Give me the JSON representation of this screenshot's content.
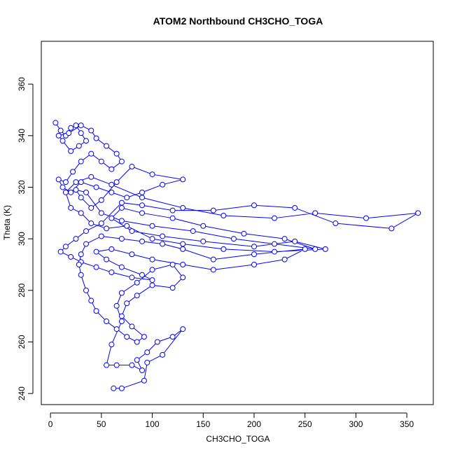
{
  "chart_data": {
    "type": "scatter",
    "title": "ATOM2 Northbound CH3CHO_TOGA",
    "x_label": "CH3CHO_TOGA",
    "y_label": "Theta (K)",
    "xlim": [
      -9,
      376
    ],
    "ylim": [
      235.7,
      376.6
    ],
    "xticks": [
      0,
      50,
      100,
      150,
      200,
      250,
      300,
      350
    ],
    "yticks": [
      240,
      260,
      280,
      300,
      320,
      340,
      360
    ],
    "series": [
      {
        "name": "CH3CHO_TOGA",
        "color": "#0000ff",
        "x": [
          5,
          10,
          15,
          20,
          25,
          30,
          35,
          28,
          20,
          12,
          8,
          18,
          30,
          40,
          45,
          55,
          65,
          70,
          60,
          50,
          40,
          30,
          22,
          15,
          8,
          12,
          20,
          30,
          45,
          60,
          75,
          90,
          110,
          130,
          100,
          80,
          65,
          50,
          40,
          30,
          25,
          35,
          50,
          70,
          100,
          140,
          180,
          220,
          260,
          230,
          190,
          150,
          120,
          90,
          70,
          60,
          80,
          110,
          150,
          200,
          240,
          270,
          220,
          170,
          130,
          100,
          75,
          55,
          40,
          30,
          20,
          15,
          25,
          40,
          60,
          90,
          130,
          170,
          220,
          260,
          310,
          361,
          335,
          280,
          240,
          200,
          160,
          120,
          90,
          70,
          50,
          35,
          25,
          15,
          10,
          20,
          30,
          45,
          60,
          80,
          100,
          90,
          70,
          55,
          45,
          60,
          80,
          100,
          130,
          160,
          200,
          230,
          250,
          200,
          160,
          130,
          110,
          90,
          70,
          50,
          35,
          30,
          28,
          30,
          35,
          40,
          45,
          55,
          65,
          75,
          85,
          92,
          80,
          70,
          75,
          85,
          100,
          120,
          130,
          120,
          100,
          85,
          70,
          65,
          70,
          60,
          55,
          65,
          80,
          90,
          85,
          95,
          105,
          120,
          130,
          110,
          95,
          92,
          70,
          62
        ],
        "values": [
          345,
          342,
          340,
          343,
          344,
          341,
          338,
          336,
          334,
          338,
          340,
          341,
          344,
          342,
          339,
          336,
          333,
          330,
          327,
          330,
          333,
          330,
          326,
          322,
          323,
          320,
          318,
          322,
          320,
          318,
          316,
          318,
          321,
          323,
          325,
          328,
          322,
          315,
          312,
          316,
          319,
          318,
          310,
          307,
          305,
          303,
          300,
          298,
          296,
          300,
          302,
          305,
          308,
          310,
          312,
          308,
          303,
          301,
          299,
          297,
          299,
          296,
          295,
          296,
          298,
          300,
          305,
          304,
          306,
          310,
          312,
          318,
          322,
          324,
          321,
          316,
          312,
          309,
          308,
          310,
          308,
          310,
          304,
          306,
          312,
          313,
          311,
          311,
          313,
          314,
          306,
          303,
          300,
          297,
          295,
          293,
          291,
          289,
          287,
          285,
          284,
          286,
          289,
          292,
          295,
          296,
          294,
          292,
          290,
          288,
          290,
          292,
          296,
          294,
          292,
          296,
          298,
          299,
          300,
          301,
          298,
          294,
          290,
          286,
          280,
          276,
          272,
          268,
          265,
          262,
          260,
          262,
          266,
          270,
          275,
          278,
          282,
          281,
          285,
          290,
          288,
          283,
          279,
          274,
          268,
          259,
          251,
          251,
          251,
          249,
          253,
          256,
          260,
          262,
          265,
          255,
          252,
          245,
          242,
          242
        ]
      }
    ]
  }
}
